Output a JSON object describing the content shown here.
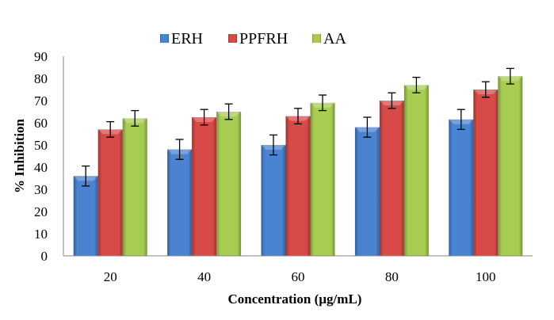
{
  "chart_data": {
    "type": "bar",
    "title": "",
    "xlabel": "Concentration (µg/mL)",
    "ylabel": "% Inhibition",
    "ylim": [
      0,
      90
    ],
    "yticks": [
      0,
      10,
      20,
      30,
      40,
      50,
      60,
      70,
      80,
      90
    ],
    "ytick_labels": [
      "0",
      "10",
      "20",
      "30",
      "40",
      "50",
      "60",
      "70",
      "80",
      "90"
    ],
    "categories": [
      "20",
      "40",
      "60",
      "80",
      "100"
    ],
    "grid": false,
    "legend_position": "top-center",
    "series": [
      {
        "name": "ERH",
        "color": "#4a7ebb",
        "values": [
          36,
          48,
          50,
          58,
          61.5
        ],
        "errors": [
          4.5,
          4.5,
          4.5,
          4.5,
          4.5
        ]
      },
      {
        "name": "PPFRH",
        "color": "#be4b48",
        "values": [
          57,
          62.5,
          63,
          70,
          75
        ],
        "errors": [
          3.5,
          3.5,
          3.5,
          3.5,
          3.5
        ]
      },
      {
        "name": "AA",
        "color": "#98b954",
        "values": [
          62,
          65,
          69,
          77,
          81
        ],
        "errors": [
          3.5,
          3.5,
          3.5,
          3.5,
          3.5
        ]
      }
    ]
  }
}
